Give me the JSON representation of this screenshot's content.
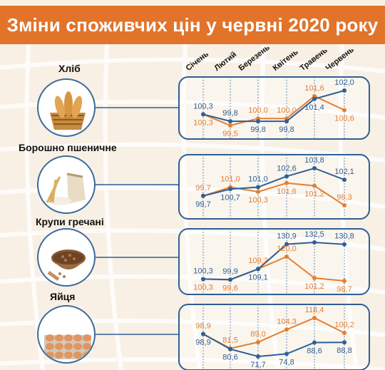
{
  "title": "Зміни споживчих цін у червні 2020 року",
  "colors": {
    "blue": "#2e5f96",
    "orange": "#e47f32",
    "banner": "#e1742a",
    "background": "#f8f0e4"
  },
  "months": [
    "Січень",
    "Лютий",
    "Березень",
    "Квітень",
    "Травень",
    "Червень"
  ],
  "categories": [
    {
      "label": "Хліб",
      "icon": "bread-basket-icon"
    },
    {
      "label": "Борошно пшеничне",
      "icon": "flour-bag-icon"
    },
    {
      "label": "Крупи гречані",
      "icon": "buckwheat-bowl-icon"
    },
    {
      "label": "Яйця",
      "icon": "egg-tray-icon"
    }
  ],
  "chart_data": [
    {
      "type": "line",
      "x": [
        "Січень",
        "Лютий",
        "Березень",
        "Квітень",
        "Травень",
        "Червень"
      ],
      "series": [
        {
          "color": "#2e5f96",
          "values": [
            100.3,
            99.8,
            99.8,
            99.8,
            101.4,
            102.0
          ],
          "labels": [
            "100,3",
            "99,8",
            "99,8",
            "99,8",
            "101,4",
            "102,0"
          ]
        },
        {
          "color": "#e47f32",
          "values": [
            100.3,
            99.5,
            100.0,
            100.0,
            101.6,
            100.6
          ],
          "labels": [
            "100,3",
            "99,5",
            "100,0",
            "100,0",
            "101,6",
            "100,6"
          ]
        }
      ]
    },
    {
      "type": "line",
      "x": [
        "Січень",
        "Лютий",
        "Березень",
        "Квітень",
        "Травень",
        "Червень"
      ],
      "series": [
        {
          "color": "#2e5f96",
          "values": [
            99.7,
            100.7,
            101.0,
            102.6,
            103.8,
            102.1
          ],
          "labels": [
            "99,7",
            "100,7",
            "101,0",
            "102,6",
            "103,8",
            "102,1"
          ]
        },
        {
          "color": "#e47f32",
          "values": [
            99.7,
            101.0,
            100.3,
            101.6,
            101.2,
            98.3
          ],
          "labels": [
            "99,7",
            "101,0",
            "100,3",
            "101,6",
            "101,2",
            "98,3"
          ]
        }
      ]
    },
    {
      "type": "line",
      "x": [
        "Січень",
        "Лютий",
        "Березень",
        "Квітень",
        "Травень",
        "Червень"
      ],
      "series": [
        {
          "color": "#2e5f96",
          "values": [
            100.3,
            99.9,
            109.1,
            130.9,
            132.5,
            130.8
          ],
          "labels": [
            "100,3",
            "99,9",
            "109,1",
            "130,9",
            "132,5",
            "130,8"
          ]
        },
        {
          "color": "#e47f32",
          "values": [
            100.3,
            99.6,
            109.2,
            120.0,
            101.2,
            98.7
          ],
          "labels": [
            "100,3",
            "99,6",
            "109,2",
            "120,0",
            "101,2",
            "98,7"
          ]
        }
      ]
    },
    {
      "type": "line",
      "x": [
        "Січень",
        "Лютий",
        "Березень",
        "Квітень",
        "Травень",
        "Червень"
      ],
      "series": [
        {
          "color": "#2e5f96",
          "values": [
            98.9,
            80.6,
            71.7,
            74.8,
            88.6,
            88.8
          ],
          "labels": [
            "98,9",
            "80,6",
            "71,7",
            "74,8",
            "88,6",
            "88,8"
          ]
        },
        {
          "color": "#e47f32",
          "values": [
            98.9,
            81.5,
            89.0,
            104.3,
            118.4,
            100.2
          ],
          "labels": [
            "98,9",
            "81,5",
            "89,0",
            "104,3",
            "118,4",
            "100,2"
          ]
        }
      ]
    }
  ]
}
